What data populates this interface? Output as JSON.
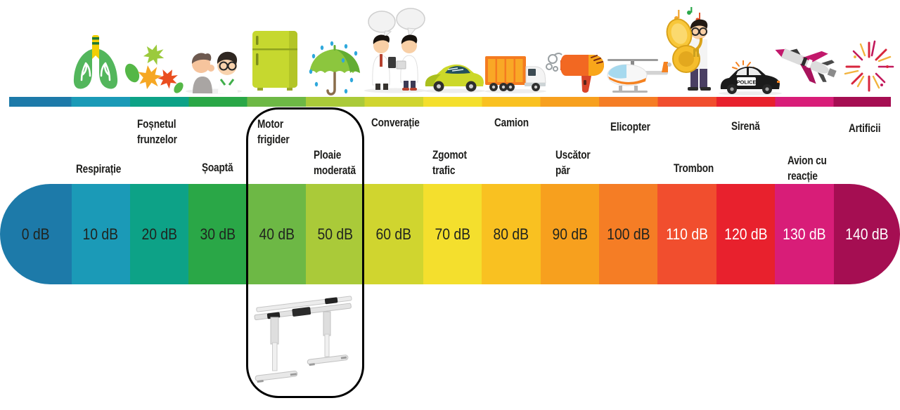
{
  "scale": {
    "unit": "dB",
    "segments": [
      {
        "value": "0 dB",
        "color": "#1d7aa9",
        "text_tone": "dark",
        "label": "",
        "icon": "",
        "highlighted": false
      },
      {
        "value": "10 dB",
        "color": "#1b9ab7",
        "text_tone": "dark",
        "label": "Respirație",
        "icon": "lungs-icon",
        "highlighted": false
      },
      {
        "value": "20 dB",
        "color": "#0da287",
        "text_tone": "dark",
        "label": "Foșnetul\nfrunzelor",
        "icon": "leaves-icon",
        "highlighted": false
      },
      {
        "value": "30 dB",
        "color": "#2aa747",
        "text_tone": "dark",
        "label": "Șoaptă",
        "icon": "whisper-icon",
        "highlighted": false
      },
      {
        "value": "40 dB",
        "color": "#6db845",
        "text_tone": "dark",
        "label": "Motor\nfrigider",
        "icon": "fridge-icon",
        "highlighted": true
      },
      {
        "value": "50 dB",
        "color": "#aaca39",
        "text_tone": "dark",
        "label": "Ploaie\nmoderată",
        "icon": "umbrella-rain-icon",
        "highlighted": true
      },
      {
        "value": "60 dB",
        "color": "#d0d52f",
        "text_tone": "dark",
        "label": "Converație",
        "icon": "conversation-icon",
        "highlighted": false
      },
      {
        "value": "70 dB",
        "color": "#f4df2d",
        "text_tone": "dark",
        "label": "Zgomot\ntrafic",
        "icon": "car-icon",
        "highlighted": false
      },
      {
        "value": "80 dB",
        "color": "#f9c121",
        "text_tone": "dark",
        "label": "Camion",
        "icon": "truck-icon",
        "highlighted": false
      },
      {
        "value": "90 dB",
        "color": "#f7a01e",
        "text_tone": "dark",
        "label": "Uscător\npăr",
        "icon": "hair-dryer-icon",
        "highlighted": false
      },
      {
        "value": "100 dB",
        "color": "#f57d25",
        "text_tone": "dark",
        "label": "Elicopter",
        "icon": "helicopter-icon",
        "highlighted": false
      },
      {
        "value": "110 dB",
        "color": "#f14e2e",
        "text_tone": "light",
        "label": "Trombon",
        "icon": "tuba-player-icon",
        "highlighted": false
      },
      {
        "value": "120 dB",
        "color": "#e8212d",
        "text_tone": "light",
        "label": "Sirenă",
        "icon": "police-car-icon",
        "highlighted": false
      },
      {
        "value": "130 dB",
        "color": "#d81d78",
        "text_tone": "light",
        "label": "Avion cu\nreacție",
        "icon": "jet-icon",
        "highlighted": false
      },
      {
        "value": "140 dB",
        "color": "#a50e52",
        "text_tone": "light",
        "label": "Artificii",
        "icon": "fireworks-icon",
        "highlighted": false
      }
    ]
  },
  "highlight_box": {
    "highlighted_range": [
      "40 dB",
      "50 dB"
    ],
    "icon": "standing-desk-icon"
  }
}
